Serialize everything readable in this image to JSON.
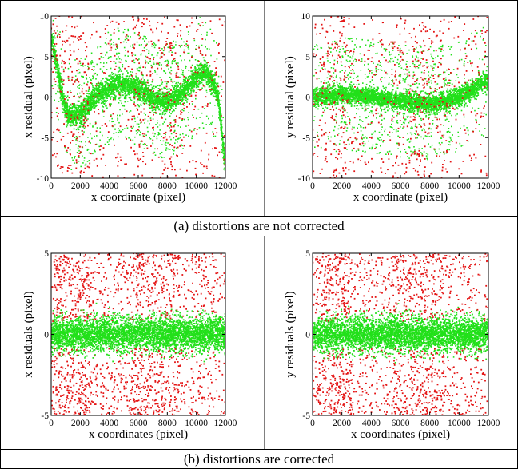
{
  "colors": {
    "rejected": "#e41414",
    "accepted": "#22e01a",
    "accepted_dense": "#16e012",
    "frame": "#000000"
  },
  "captions": {
    "a": "(a) distortions are not corrected",
    "b": "(b) distortions are corrected"
  },
  "chart_data": [
    {
      "type": "scatter",
      "panel": "a-left",
      "xlabel": "x coordinate (pixel)",
      "ylabel": "x residual (pixel)",
      "xlim": [
        0,
        12000
      ],
      "ylim": [
        -10,
        10
      ],
      "xticks": [
        "0",
        "2000",
        "4000",
        "6000",
        "8000",
        "10000",
        "12000"
      ],
      "yticks": [
        "-10",
        "-5",
        "0",
        "5",
        "10"
      ],
      "grid": false,
      "series": [
        {
          "role": "rejected",
          "color": "#e41414",
          "description_points": 900,
          "spread": [
            -10,
            10
          ]
        },
        {
          "role": "accepted",
          "color": "#22e01a",
          "trend": "polynomial",
          "trend_points": [
            [
              0,
              7
            ],
            [
              1000,
              -1.5
            ],
            [
              2000,
              -2
            ],
            [
              3000,
              0
            ],
            [
              4500,
              1.5
            ],
            [
              6000,
              1
            ],
            [
              7500,
              -0.5
            ],
            [
              9000,
              0.5
            ],
            [
              10500,
              3
            ],
            [
              11500,
              0
            ],
            [
              12000,
              -8
            ]
          ],
          "band_halfwidth": 1.2
        }
      ]
    },
    {
      "type": "scatter",
      "panel": "a-right",
      "xlabel": "x coordinate (pixel)",
      "ylabel": "y residual (pixel)",
      "xlim": [
        0,
        12000
      ],
      "ylim": [
        -10,
        10
      ],
      "xticks": [
        "0",
        "2000",
        "4000",
        "6000",
        "8000",
        "10000",
        "12000"
      ],
      "yticks": [
        "-10",
        "-5",
        "0",
        "5",
        "10"
      ],
      "grid": false,
      "series": [
        {
          "role": "rejected",
          "color": "#e41414",
          "spread": [
            -10,
            10
          ]
        },
        {
          "role": "accepted",
          "color": "#22e01a",
          "trend": "polynomial",
          "trend_points": [
            [
              0,
              0
            ],
            [
              2000,
              0.3
            ],
            [
              4000,
              0
            ],
            [
              6000,
              -0.5
            ],
            [
              8000,
              -0.8
            ],
            [
              10000,
              0
            ],
            [
              12000,
              2
            ]
          ],
          "band_halfwidth": 1.0
        }
      ]
    },
    {
      "type": "scatter",
      "panel": "b-left",
      "xlabel": "x coordinates (pixel)",
      "ylabel": "x residuals (pixel)",
      "xlim": [
        0,
        12000
      ],
      "ylim": [
        -5,
        5
      ],
      "xticks": [
        "0",
        "2000",
        "4000",
        "6000",
        "8000",
        "10000",
        "12000"
      ],
      "yticks": [
        "-5",
        "0",
        "5"
      ],
      "grid": false,
      "series": [
        {
          "role": "rejected",
          "color": "#e41414",
          "spread": [
            -5,
            5
          ]
        },
        {
          "role": "accepted",
          "color": "#22e01a",
          "trend": "flat",
          "trend_points": [
            [
              0,
              0
            ],
            [
              12000,
              0
            ]
          ],
          "band_halfwidth": 0.9
        }
      ]
    },
    {
      "type": "scatter",
      "panel": "b-right",
      "xlabel": "x coordinates (pixel)",
      "ylabel": "y residuals (pixel)",
      "xlim": [
        0,
        12000
      ],
      "ylim": [
        -5,
        5
      ],
      "xticks": [
        "0",
        "2000",
        "4000",
        "6000",
        "8000",
        "10000",
        "12000"
      ],
      "yticks": [
        "-5",
        "0",
        "5"
      ],
      "grid": false,
      "series": [
        {
          "role": "rejected",
          "color": "#e41414",
          "spread": [
            -5,
            5
          ]
        },
        {
          "role": "accepted",
          "color": "#22e01a",
          "trend": "flat",
          "trend_points": [
            [
              0,
              0
            ],
            [
              12000,
              0
            ]
          ],
          "band_halfwidth": 0.9
        }
      ]
    }
  ]
}
